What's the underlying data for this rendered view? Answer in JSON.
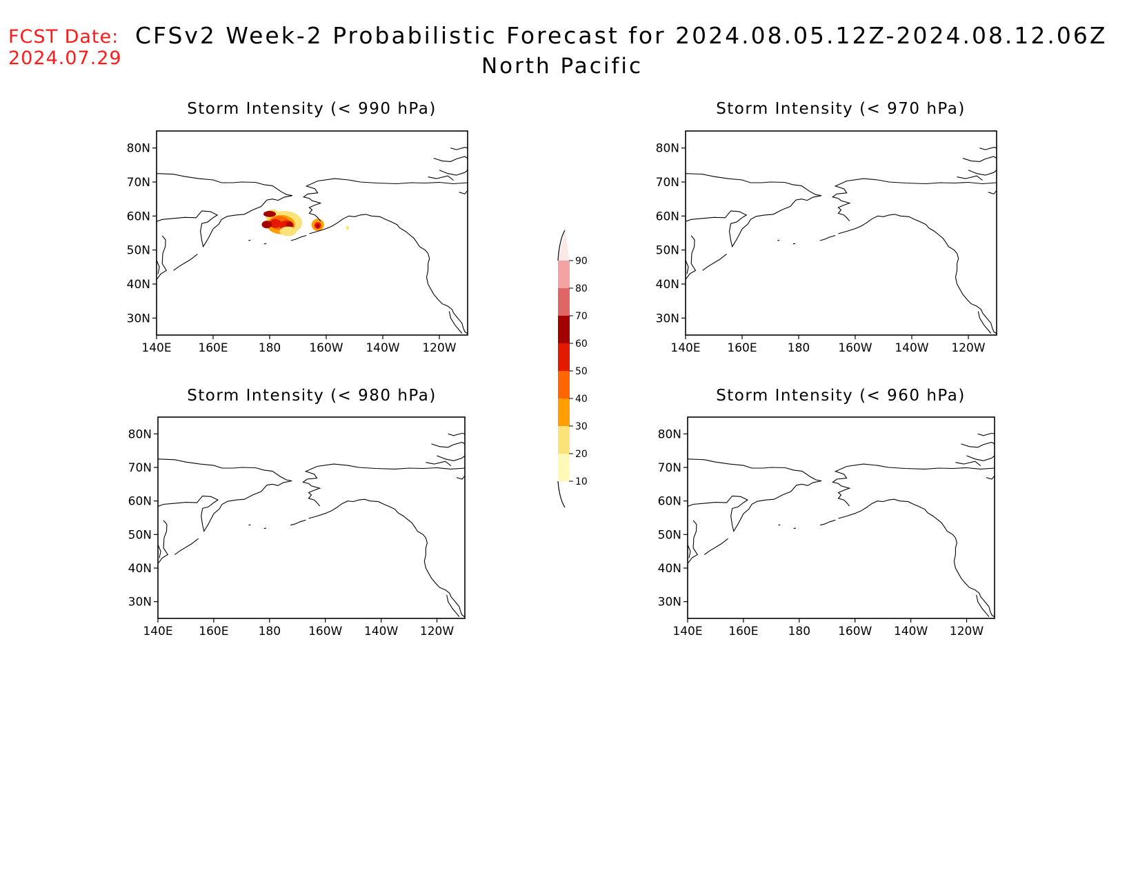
{
  "header": {
    "fcst_label": "FCST Date:",
    "fcst_date": "2024.07.29",
    "title": "CFSv2 Week-2 Probabilistic Forecast for 2024.08.05.12Z-2024.08.12.06Z",
    "region": "North Pacific"
  },
  "axes": {
    "x_ticks": [
      "140E",
      "160E",
      "180",
      "160W",
      "140W",
      "120W"
    ],
    "y_ticks": [
      "80N",
      "70N",
      "60N",
      "50N",
      "40N",
      "30N"
    ]
  },
  "panels": [
    {
      "id": "p990",
      "title": "Storm Intensity (< 990 hPa)",
      "has_storm": true
    },
    {
      "id": "p970",
      "title": "Storm Intensity (< 970 hPa)",
      "has_storm": false
    },
    {
      "id": "p980",
      "title": "Storm Intensity (< 980 hPa)",
      "has_storm": false
    },
    {
      "id": "p960",
      "title": "Storm Intensity (< 960 hPa)",
      "has_storm": false
    }
  ],
  "colorbar": {
    "labels": [
      "90",
      "80",
      "70",
      "60",
      "50",
      "40",
      "30",
      "20",
      "10"
    ],
    "colors": [
      "#fde8e8",
      "#f4a3a3",
      "#e06666",
      "#a50000",
      "#e41a00",
      "#ff6600",
      "#ff9e00",
      "#fde27a",
      "#fff9b8"
    ]
  }
}
